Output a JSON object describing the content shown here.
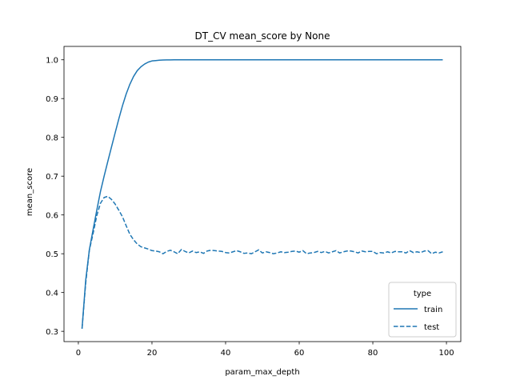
{
  "chart_data": {
    "type": "line",
    "title": "DT_CV mean_score by None",
    "xlabel": "param_max_depth",
    "ylabel": "mean_score",
    "xlim": [
      -3.9,
      103.9
    ],
    "ylim": [
      0.2735,
      1.0345
    ],
    "xticks": [
      0,
      20,
      40,
      60,
      80,
      100
    ],
    "xtick_labels": [
      "0",
      "20",
      "40",
      "60",
      "80",
      "100"
    ],
    "yticks": [
      0.3,
      0.4,
      0.5,
      0.6,
      0.7,
      0.8,
      0.9,
      1.0
    ],
    "ytick_labels": [
      "0.3",
      "0.4",
      "0.5",
      "0.6",
      "0.7",
      "0.8",
      "0.9",
      "1.0"
    ],
    "grid": false,
    "legend": {
      "title": "type",
      "placement": "lower-right"
    },
    "color": "#1f77b4",
    "x": [
      1,
      2,
      3,
      4,
      5,
      6,
      7,
      8,
      9,
      10,
      11,
      12,
      13,
      14,
      15,
      16,
      17,
      18,
      19,
      20,
      21,
      22,
      23,
      24,
      25,
      26,
      27,
      28,
      29,
      30,
      31,
      32,
      33,
      34,
      35,
      36,
      37,
      38,
      39,
      40,
      41,
      42,
      43,
      44,
      45,
      46,
      47,
      48,
      49,
      50,
      51,
      52,
      53,
      54,
      55,
      56,
      57,
      58,
      59,
      60,
      61,
      62,
      63,
      64,
      65,
      66,
      67,
      68,
      69,
      70,
      71,
      72,
      73,
      74,
      75,
      76,
      77,
      78,
      79,
      80,
      81,
      82,
      83,
      84,
      85,
      86,
      87,
      88,
      89,
      90,
      91,
      92,
      93,
      94,
      95,
      96,
      97,
      98,
      99
    ],
    "series": [
      {
        "name": "train",
        "line_style": "solid",
        "values": [
          0.307,
          0.432,
          0.511,
          0.562,
          0.612,
          0.66,
          0.7,
          0.738,
          0.775,
          0.812,
          0.848,
          0.882,
          0.912,
          0.937,
          0.957,
          0.972,
          0.982,
          0.989,
          0.994,
          0.997,
          0.998,
          0.999,
          0.9995,
          0.9997,
          0.9998,
          0.9999,
          1.0,
          1.0,
          1.0,
          1.0,
          1.0,
          1.0,
          1.0,
          1.0,
          1.0,
          1.0,
          1.0,
          1.0,
          1.0,
          1.0,
          1.0,
          1.0,
          1.0,
          1.0,
          1.0,
          1.0,
          1.0,
          1.0,
          1.0,
          1.0,
          1.0,
          1.0,
          1.0,
          1.0,
          1.0,
          1.0,
          1.0,
          1.0,
          1.0,
          1.0,
          1.0,
          1.0,
          1.0,
          1.0,
          1.0,
          1.0,
          1.0,
          1.0,
          1.0,
          1.0,
          1.0,
          1.0,
          1.0,
          1.0,
          1.0,
          1.0,
          1.0,
          1.0,
          1.0,
          1.0,
          1.0,
          1.0,
          1.0,
          1.0,
          1.0,
          1.0,
          1.0,
          1.0,
          1.0,
          1.0,
          1.0,
          1.0,
          1.0,
          1.0,
          1.0,
          1.0,
          1.0,
          1.0,
          1.0
        ]
      },
      {
        "name": "test",
        "line_style": "dashed",
        "values": [
          0.307,
          0.425,
          0.51,
          0.552,
          0.598,
          0.63,
          0.645,
          0.648,
          0.64,
          0.628,
          0.612,
          0.595,
          0.572,
          0.55,
          0.536,
          0.525,
          0.518,
          0.515,
          0.512,
          0.508,
          0.507,
          0.505,
          0.5,
          0.506,
          0.509,
          0.505,
          0.5,
          0.511,
          0.506,
          0.502,
          0.507,
          0.503,
          0.505,
          0.501,
          0.507,
          0.509,
          0.508,
          0.507,
          0.506,
          0.503,
          0.502,
          0.505,
          0.508,
          0.505,
          0.501,
          0.502,
          0.5,
          0.505,
          0.51,
          0.502,
          0.505,
          0.503,
          0.5,
          0.502,
          0.505,
          0.503,
          0.504,
          0.506,
          0.507,
          0.504,
          0.508,
          0.5,
          0.502,
          0.503,
          0.506,
          0.503,
          0.506,
          0.502,
          0.505,
          0.508,
          0.502,
          0.505,
          0.507,
          0.507,
          0.505,
          0.502,
          0.507,
          0.505,
          0.506,
          0.506,
          0.5,
          0.503,
          0.502,
          0.505,
          0.502,
          0.506,
          0.505,
          0.505,
          0.502,
          0.508,
          0.503,
          0.505,
          0.503,
          0.507,
          0.508,
          0.5,
          0.504,
          0.502,
          0.505
        ]
      }
    ]
  }
}
